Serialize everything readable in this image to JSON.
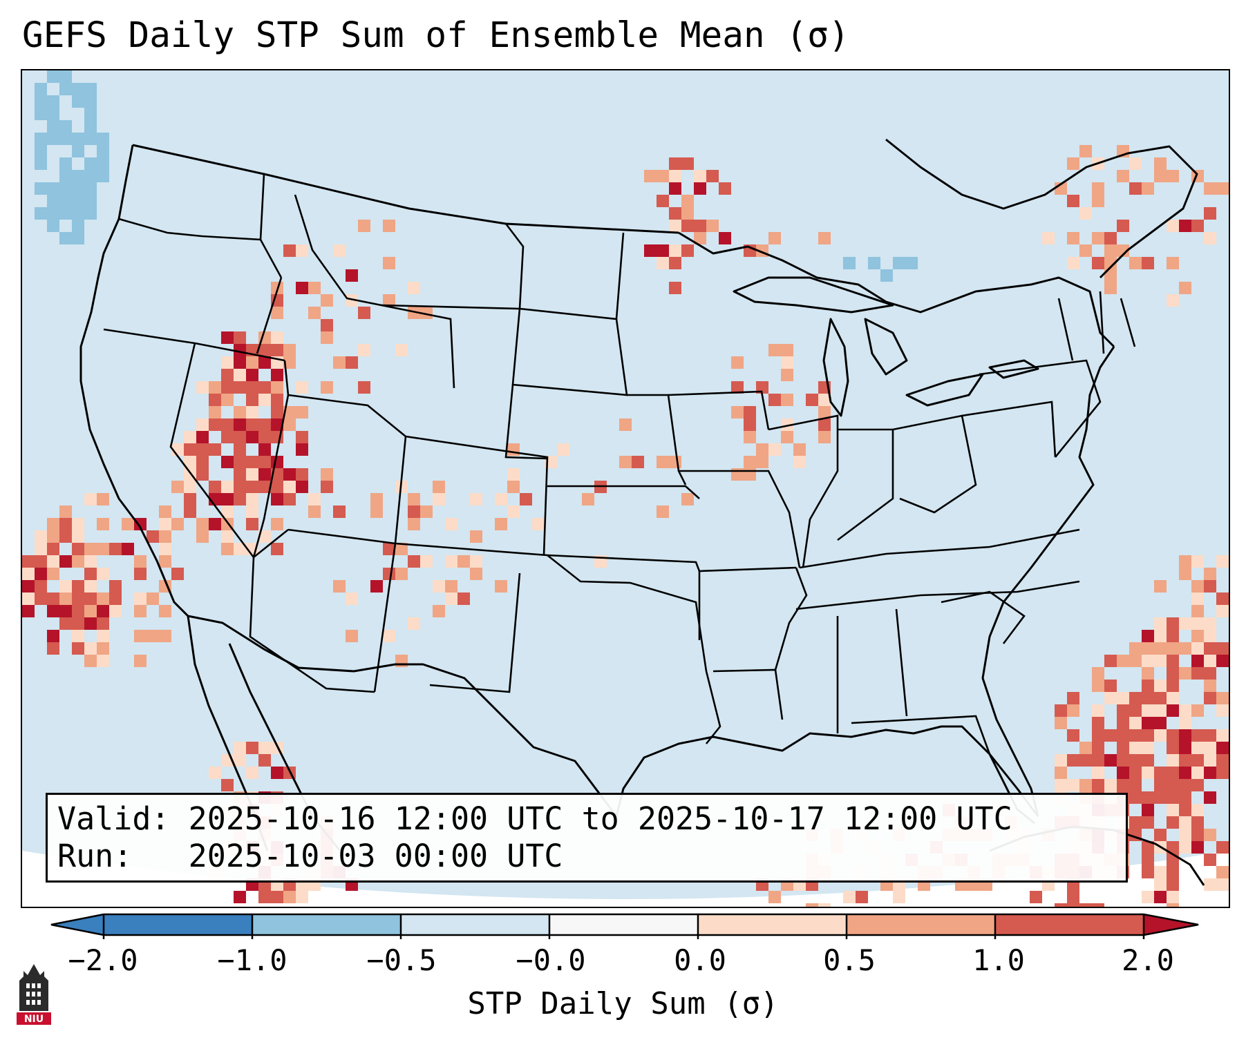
{
  "title": "GEFS Daily STP Sum of Ensemble Mean (σ)",
  "info": {
    "valid_label": "Valid:",
    "valid_value": "2025-10-16 12:00 UTC to 2025-10-17 12:00 UTC",
    "run_label": "Run:",
    "run_value": "2025-10-03 00:00 UTC"
  },
  "colorbar": {
    "label": "STP Daily Sum (σ)",
    "ticks": [
      "−2.0",
      "−1.0",
      "−0.5",
      "−0.0",
      "0.0",
      "0.5",
      "1.0",
      "2.0"
    ],
    "colors": [
      "#3a7fbe",
      "#8fc3de",
      "#d3e6f1",
      "#f7f7f7",
      "#fcdcc8",
      "#f0a585",
      "#d55a50",
      "#b5132a"
    ]
  },
  "map": {
    "projection": "Lambert Conformal (CONUS)",
    "background_color": "#d3e6f1",
    "region": "Contiguous United States, southern Canada, northern Mexico, Gulf of Mexico, Caribbean"
  },
  "logo": {
    "text": "NIU",
    "color": "#c8102e"
  }
}
